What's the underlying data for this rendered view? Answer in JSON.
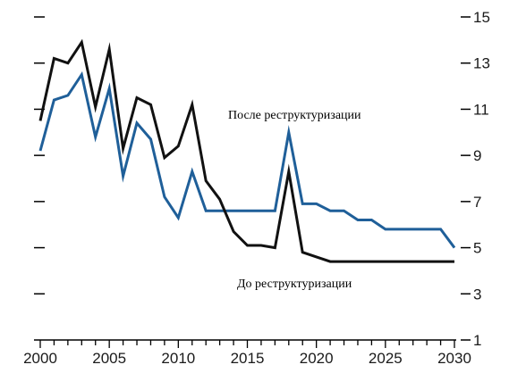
{
  "chart_data": {
    "type": "line",
    "title": "",
    "xlabel": "",
    "ylabel": "",
    "x": [
      2000,
      2001,
      2002,
      2003,
      2004,
      2005,
      2006,
      2007,
      2008,
      2009,
      2010,
      2011,
      2012,
      2013,
      2014,
      2015,
      2016,
      2017,
      2018,
      2019,
      2020,
      2021,
      2022,
      2023,
      2024,
      2025,
      2026,
      2027,
      2028,
      2029,
      2030
    ],
    "xlim": [
      2000,
      2030
    ],
    "ylim": [
      1,
      15
    ],
    "x_ticks": [
      2000,
      2005,
      2010,
      2015,
      2020,
      2025,
      2030
    ],
    "x_tick_labels": [
      "2000",
      "2005",
      "2010",
      "2015",
      "2020",
      "2025",
      "2030"
    ],
    "y_ticks": [
      1,
      3,
      5,
      7,
      9,
      11,
      13,
      15
    ],
    "y_tick_labels_right": [
      "1",
      "3",
      "5",
      "7",
      "9",
      "11",
      "13",
      "15"
    ],
    "y_axis_side": "right",
    "grid": false,
    "series": [
      {
        "name": "После реструктуризации",
        "color": "#1f5f99",
        "values": [
          9.2,
          11.4,
          11.6,
          12.5,
          9.8,
          11.9,
          8.1,
          10.4,
          9.7,
          7.2,
          6.3,
          8.3,
          6.6,
          6.6,
          6.6,
          6.6,
          6.6,
          6.6,
          10.0,
          6.9,
          6.9,
          6.6,
          6.6,
          6.2,
          6.2,
          5.8,
          5.8,
          5.8,
          5.8,
          5.8,
          5.0
        ]
      },
      {
        "name": "До реструктуризации",
        "color": "#111111",
        "values": [
          10.5,
          13.2,
          13.0,
          13.9,
          11.1,
          13.6,
          9.3,
          11.5,
          11.2,
          8.9,
          9.4,
          11.2,
          7.9,
          7.1,
          5.7,
          5.1,
          5.1,
          5.0,
          8.3,
          4.8,
          4.6,
          4.4,
          4.4,
          4.4,
          4.4,
          4.4,
          4.4,
          4.4,
          4.4,
          4.4,
          4.4
        ]
      }
    ],
    "annotations": [
      {
        "text": "После реструктуризации",
        "series": 0
      },
      {
        "text": "До реструктуризации",
        "series": 1
      }
    ]
  }
}
